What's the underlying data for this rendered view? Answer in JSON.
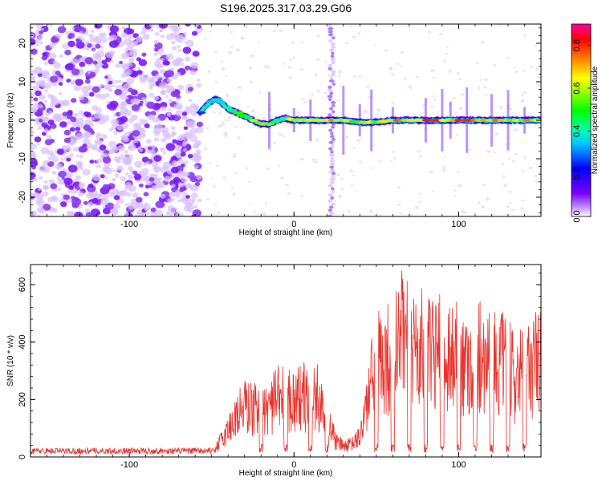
{
  "title": "S196.2025.317.03.29.G06",
  "chart_data": [
    {
      "type": "heatmap",
      "name": "spectrogram",
      "xlabel": "Height of straight line (km)",
      "ylabel": "Frequency (Hz)",
      "xlim": [
        -160,
        150
      ],
      "ylim": [
        -25,
        25
      ],
      "xticks": [
        -100,
        0,
        100
      ],
      "yticks": [
        -20,
        -10,
        0,
        10,
        20
      ],
      "colorbar": {
        "label": "Normalized spectral amplitude",
        "range": [
          0,
          0.9
        ],
        "ticks": [
          0.0,
          0.2,
          0.4,
          0.6,
          0.8
        ]
      },
      "noise_region_x": [
        -160,
        -57
      ],
      "vertical_stripe_x": 23,
      "track": {
        "x": [
          -57,
          -53,
          -50,
          -48,
          -45,
          -40,
          -35,
          -30,
          -25,
          -20,
          -15,
          -10,
          -5,
          0,
          10,
          20,
          30,
          40,
          50,
          60,
          70,
          80,
          90,
          100,
          110,
          120,
          130,
          140,
          150
        ],
        "freq": [
          2,
          4,
          5,
          5.5,
          5,
          3,
          2,
          1,
          0,
          -1,
          -1,
          0,
          0.5,
          0,
          0,
          0,
          0,
          -0.5,
          -0.5,
          0,
          0,
          0,
          0,
          0,
          0,
          0,
          0,
          0,
          0
        ],
        "amplitude": [
          0.35,
          0.4,
          0.45,
          0.45,
          0.5,
          0.55,
          0.55,
          0.6,
          0.7,
          0.8,
          0.7,
          0.6,
          0.6,
          0.75,
          0.8,
          0.85,
          0.7,
          0.7,
          0.75,
          0.85,
          0.85,
          0.9,
          0.9,
          0.9,
          0.85,
          0.85,
          0.8,
          0.8,
          0.75
        ]
      }
    },
    {
      "type": "line",
      "name": "snr",
      "xlabel": "Height of straight line (km)",
      "ylabel": "SNR (10 * v/v)",
      "xlim": [
        -160,
        150
      ],
      "ylim": [
        0,
        670
      ],
      "xticks": [
        -100,
        0,
        100
      ],
      "yticks": [
        0,
        200,
        400,
        600
      ],
      "color": "#e8332b",
      "envelope": {
        "x": [
          -160,
          -50,
          -45,
          -40,
          -35,
          -30,
          -25,
          -20,
          -15,
          -10,
          -5,
          0,
          5,
          10,
          15,
          20,
          25,
          30,
          35,
          40,
          45,
          50,
          55,
          60,
          65,
          70,
          75,
          80,
          85,
          90,
          95,
          100,
          105,
          110,
          115,
          120,
          125,
          130,
          135,
          140,
          145,
          150
        ],
        "y": [
          25,
          25,
          80,
          150,
          230,
          280,
          270,
          250,
          280,
          320,
          330,
          320,
          340,
          300,
          330,
          220,
          90,
          60,
          70,
          110,
          330,
          530,
          540,
          560,
          650,
          650,
          620,
          560,
          550,
          580,
          580,
          550,
          520,
          560,
          580,
          540,
          520,
          480,
          440,
          460,
          520,
          520
        ]
      },
      "dips_x": [
        -20,
        -5,
        10,
        20,
        50,
        60,
        70,
        80,
        90,
        100,
        110,
        120,
        130,
        140
      ]
    }
  ]
}
